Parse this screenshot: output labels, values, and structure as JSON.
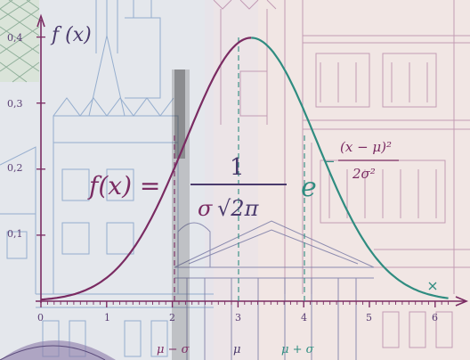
{
  "figure": {
    "y_axis_label": "f (x)",
    "y_ticks": [
      "0,4",
      "0,3",
      "0,2",
      "0,1"
    ],
    "x_ticks": [
      "0",
      "1",
      "2",
      "3",
      "4",
      "5",
      "6"
    ],
    "x_annotations": [
      "μ − σ",
      "μ",
      "μ + σ"
    ],
    "formula": {
      "lhs": "f(x) =",
      "numerator": "1",
      "denominator_sigma": "σ",
      "denominator_root": "√2π",
      "base": "e",
      "exponent_numerator": "(x − μ)²",
      "exponent_denominator": "2σ²",
      "exponent_sign": "−"
    },
    "curve": {
      "mu": 3.2,
      "sigma": 1.0
    },
    "colors": {
      "purple": "#7a2b62",
      "teal": "#2f8c80",
      "blue": "#5a7bb3",
      "pink_lines": "#b27a9a",
      "paper": "#f1e6e4",
      "left_tint": "#d9e3ee",
      "dark_band": "#3b3b3b"
    }
  }
}
